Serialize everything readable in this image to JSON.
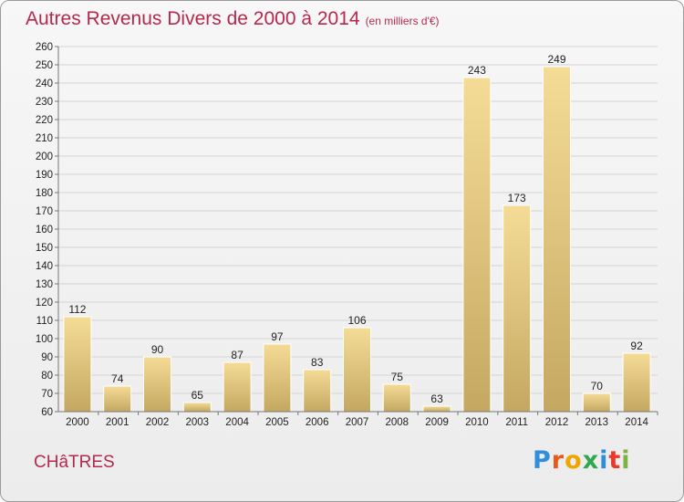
{
  "header": {
    "title": "Autres Revenus Divers de 2000 à 2014",
    "subtitle": "(en milliers d'€)"
  },
  "footer": {
    "commune": "CHâTRES",
    "brand": [
      "P",
      "r",
      "o",
      "x",
      "i",
      "t",
      "i"
    ],
    "brand_colors": [
      "#2f8ddb",
      "#e85a1b",
      "#f0a500",
      "#2fa84f",
      "#2f8ddb",
      "#e8392b",
      "#7cb342"
    ]
  },
  "chart_data": {
    "type": "bar",
    "title": "Autres Revenus Divers de 2000 à 2014",
    "subtitle": "(en milliers d'€)",
    "xlabel": "",
    "ylabel": "",
    "ylim": [
      60,
      260
    ],
    "y_ticks": [
      60,
      70,
      80,
      90,
      100,
      110,
      120,
      130,
      140,
      150,
      160,
      170,
      180,
      190,
      200,
      210,
      220,
      230,
      240,
      250,
      260
    ],
    "grid": true,
    "categories": [
      "2000",
      "2001",
      "2002",
      "2003",
      "2004",
      "2005",
      "2006",
      "2007",
      "2008",
      "2009",
      "2010",
      "2011",
      "2012",
      "2013",
      "2014"
    ],
    "values": [
      112,
      74,
      90,
      65,
      87,
      97,
      83,
      106,
      75,
      63,
      243,
      173,
      249,
      70,
      92
    ],
    "bar_color_top": "#f5dc96",
    "bar_color_bottom": "#c4a862"
  }
}
